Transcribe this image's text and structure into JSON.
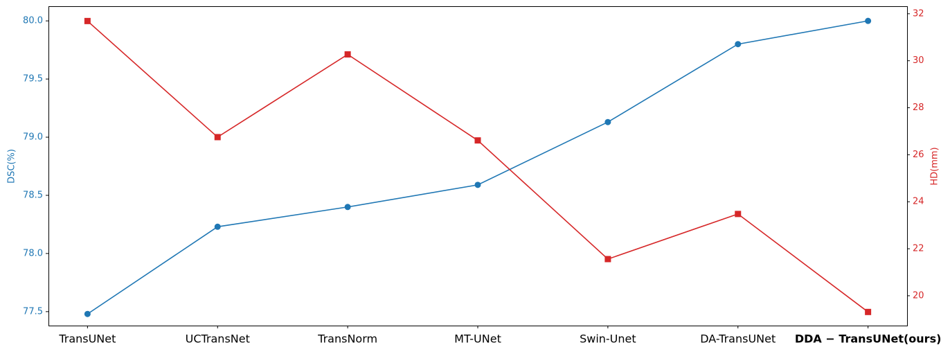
{
  "chart_data": {
    "type": "line",
    "categories": [
      "TransUNet",
      "UCTransNet",
      "TransNorm",
      "MT-UNet",
      "Swin-Unet",
      "DA-TransUNet",
      "DDA − TransUNet(ours)"
    ],
    "series": [
      {
        "name": "DSC(%)",
        "color": "#1f77b4",
        "marker": "circle",
        "values": [
          77.48,
          78.23,
          78.4,
          78.59,
          79.13,
          79.8,
          80.0
        ]
      },
      {
        "name": "HD(mm)",
        "color": "#d62728",
        "marker": "square",
        "axis": "y2",
        "values": [
          31.69,
          26.75,
          30.27,
          26.61,
          21.56,
          23.48,
          19.31
        ]
      }
    ],
    "ylabel": "DSC(%)",
    "y2label": "HD(mm)",
    "ylim": [
      77.38,
      80.12
    ],
    "yticks": [
      77.5,
      {
        "value": 78,
        "label": "78.0"
      },
      78.5,
      {
        "value": 79,
        "label": "79.0"
      },
      79.5,
      {
        "value": 80,
        "label": "80.0"
      }
    ],
    "y2lim": [
      18.73,
      32.29
    ],
    "y2ticks": [
      20,
      22,
      24,
      26,
      28,
      30,
      32
    ],
    "grid": false
  }
}
